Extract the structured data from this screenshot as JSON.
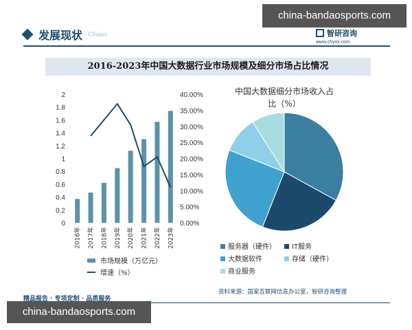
{
  "watermark": {
    "top": "china-bandaosports.com",
    "bottom": "china-bandaosports.com"
  },
  "header": {
    "title": "发展现状",
    "title_en": "Chain"
  },
  "brand": {
    "name": "智研咨询",
    "url": "www.chyxx.com"
  },
  "main_title": "2016-2023年中国大数据行业市场规模及细分市场占比情况",
  "footer": {
    "left": "精品报告 · 专项定制 · 品质服务",
    "right": "资料来源：国家互联网信息办公室，智研咨询整理"
  },
  "colors": {
    "bar": "#5b93a8",
    "line": "#1c4a63",
    "accent": "#1f4f6e"
  },
  "chart_data": [
    {
      "type": "bar",
      "categories": [
        "2016年",
        "2017年",
        "2018年",
        "2019年",
        "2020年",
        "2021年",
        "2022年",
        "2023年"
      ],
      "series": [
        {
          "name": "市场规模（万亿元）",
          "type": "bar",
          "axis": "left",
          "values": [
            0.37,
            0.47,
            0.62,
            0.85,
            1.12,
            1.3,
            1.57,
            1.74
          ]
        },
        {
          "name": "增速（%）",
          "type": "line",
          "axis": "right",
          "values": [
            null,
            27.0,
            32.0,
            37.0,
            30.5,
            17.5,
            20.5,
            11.0
          ]
        }
      ],
      "left_axis": {
        "ticks": [
          "0",
          "0.2",
          "0.4",
          "0.6",
          "0.8",
          "1",
          "1.2",
          "1.4",
          "1.6",
          "1.8",
          "2"
        ],
        "ylim": [
          0,
          2
        ]
      },
      "right_axis": {
        "ticks": [
          "0.00%",
          "5.00%",
          "10.00%",
          "15.00%",
          "20.00%",
          "25.00%",
          "30.00%",
          "35.00%",
          "40.00%"
        ],
        "ylim": [
          0,
          40
        ]
      },
      "legend_position": "bottom"
    },
    {
      "type": "pie",
      "title_lines": [
        "中国大数据细分市场收入占",
        "比（%）"
      ],
      "slices": [
        {
          "label": "服务器（硬件）",
          "value": 33,
          "color": "#3b7fa0"
        },
        {
          "label": "IT服务",
          "value": 23,
          "color": "#1c4a6a"
        },
        {
          "label": "大数据软件",
          "value": 25,
          "color": "#3fa1d0"
        },
        {
          "label": "存储（硬件）",
          "value": 10,
          "color": "#8fd0e8"
        },
        {
          "label": "商业服务",
          "value": 9,
          "color": "#a8dde0"
        }
      ],
      "legend_position": "bottom"
    }
  ]
}
